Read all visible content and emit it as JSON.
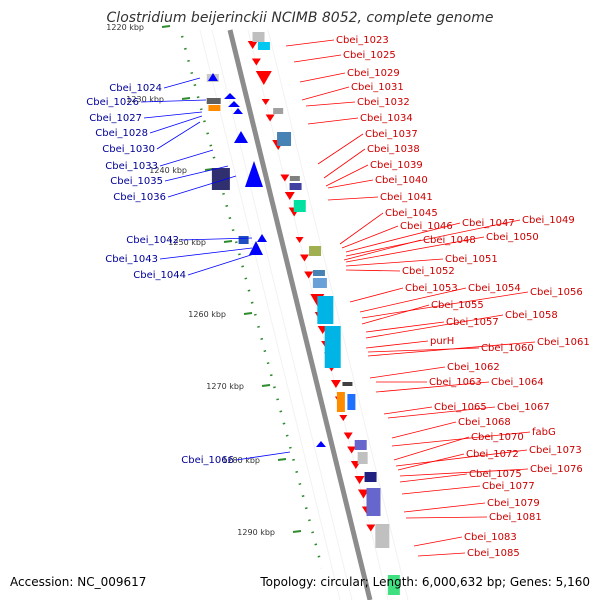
{
  "title": "Clostridium beijerinckii NCIMB 8052, complete genome",
  "accession_text": "Accession: NC_009617",
  "summary_text": "Topology: circular; Length: 6,000,632 bp; Genes: 5,160",
  "colors": {
    "forward_label": "#cc0000",
    "reverse_label": "#000099",
    "backbone": "#8c8c8c",
    "tick": "#2e8b2e",
    "gene_fwd": "#ff0000",
    "gene_rev": "#0000ff"
  },
  "kbp_ticks": [
    {
      "text": "1220 kbp"
    },
    {
      "text": "1230 kbp"
    },
    {
      "text": "1240 kbp"
    },
    {
      "text": "1250 kbp"
    },
    {
      "text": "1260 kbp"
    },
    {
      "text": "1270 kbp"
    },
    {
      "text": "1280 kbp"
    },
    {
      "text": "1290 kbp"
    }
  ],
  "reverse_genes": [
    "Cbei_1024",
    "Cbei_1026",
    "Cbei_1027",
    "Cbei_1028",
    "Cbei_1030",
    "Cbei_1033",
    "Cbei_1035",
    "Cbei_1036",
    "Cbei_1042",
    "Cbei_1043",
    "Cbei_1044",
    "Cbei_1066"
  ],
  "forward_genes": [
    "Cbei_1023",
    "Cbei_1025",
    "Cbei_1029",
    "Cbei_1031",
    "Cbei_1032",
    "Cbei_1034",
    "Cbei_1037",
    "Cbei_1038",
    "Cbei_1039",
    "Cbei_1040",
    "Cbei_1041",
    "Cbei_1045",
    "Cbei_1046",
    "Cbei_1047",
    "Cbei_1049",
    "Cbei_1048",
    "Cbei_1050",
    "Cbei_1051",
    "Cbei_1052",
    "Cbei_1053",
    "Cbei_1054",
    "Cbei_1056",
    "Cbei_1055",
    "Cbei_1057",
    "Cbei_1058",
    "purH",
    "Cbei_1060",
    "Cbei_1061",
    "Cbei_1062",
    "Cbei_1063",
    "Cbei_1064",
    "Cbei_1065",
    "Cbei_1067",
    "Cbei_1068",
    "fabG",
    "Cbei_1070",
    "Cbei_1073",
    "Cbei_1072",
    "Cbei_1076",
    "Cbei_1075",
    "Cbei_1077",
    "Cbei_1079",
    "Cbei_1081",
    "Cbei_1083",
    "Cbei_1085"
  ]
}
